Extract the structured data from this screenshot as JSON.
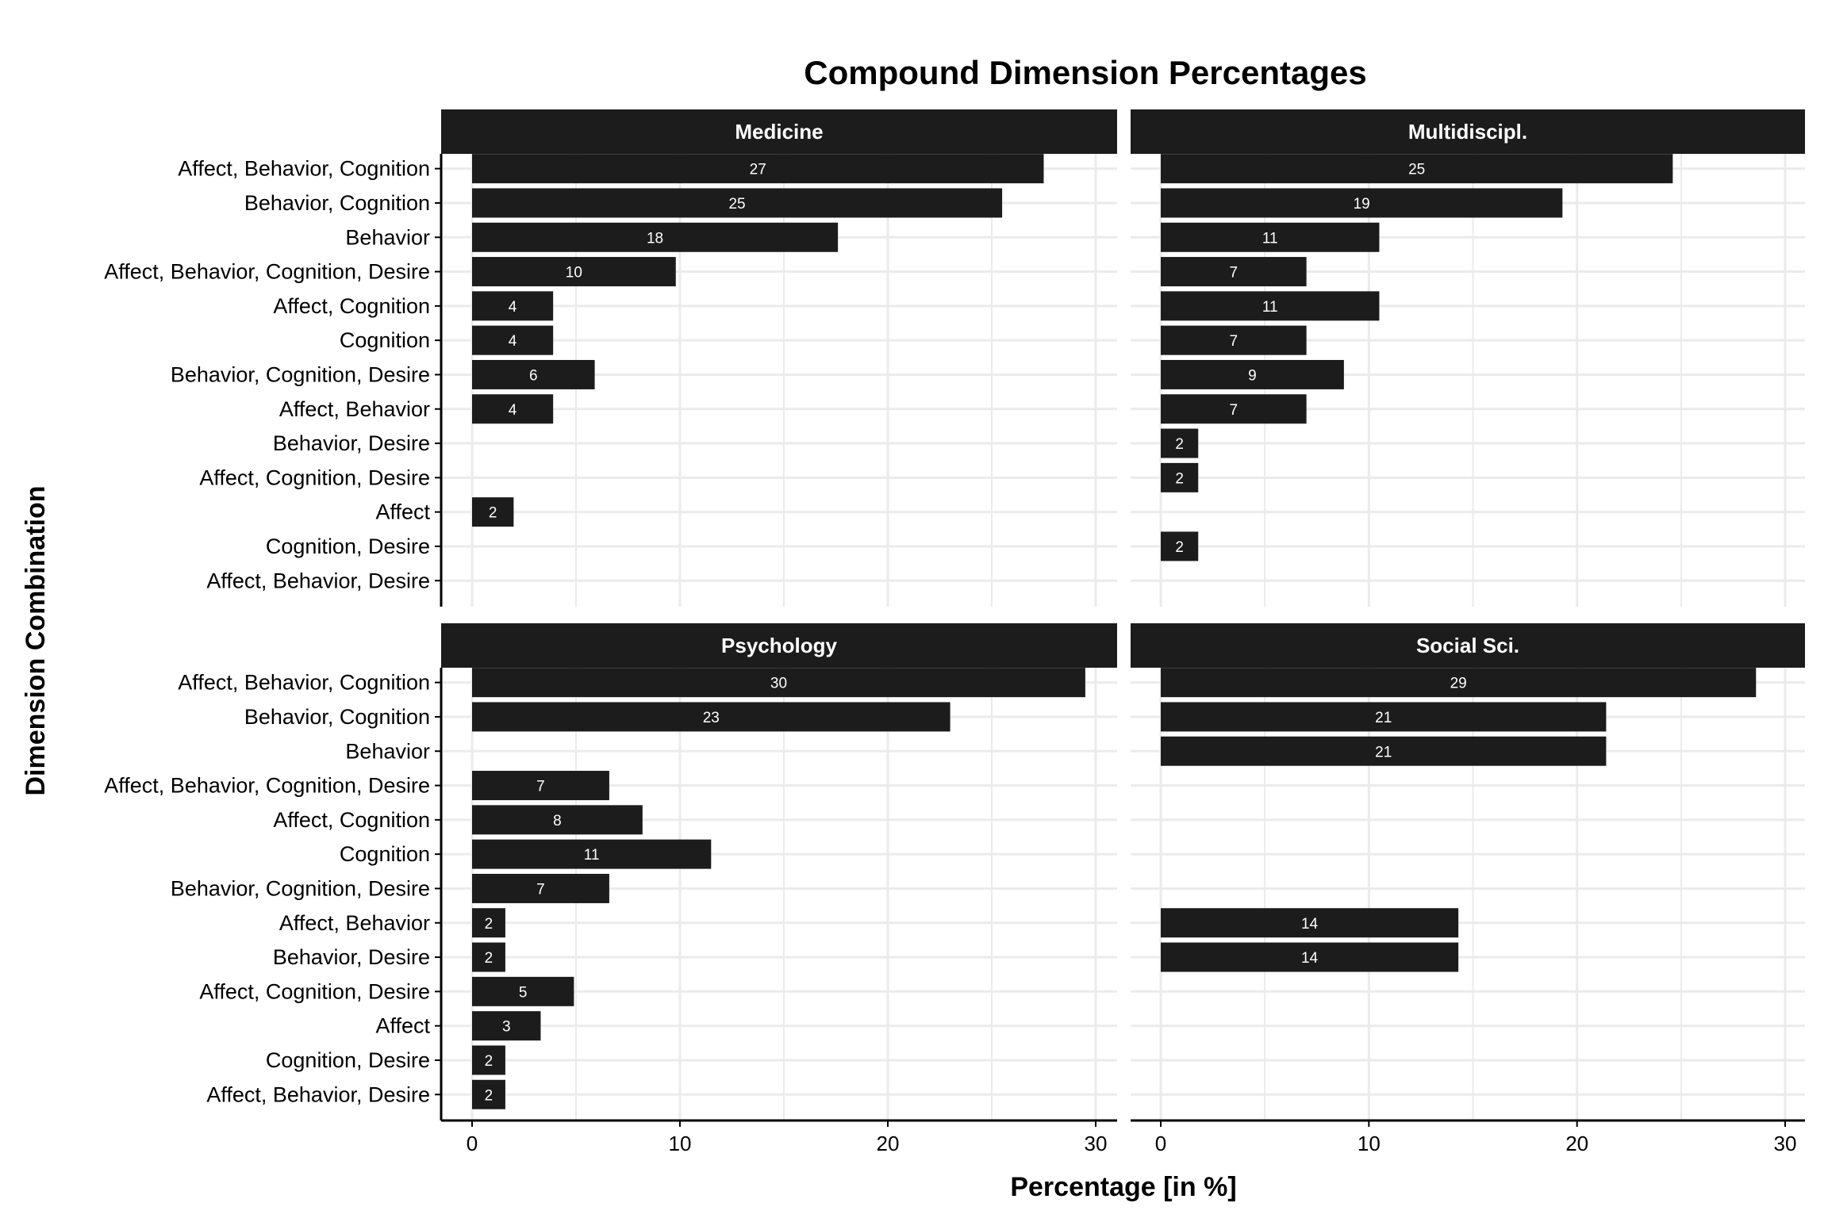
{
  "chart_data": {
    "type": "bar",
    "orientation": "horizontal",
    "title": "Compound Dimension Percentages",
    "xlabel": "Percentage [in %]",
    "ylabel": "Dimension Combination",
    "xlim": [
      0,
      30
    ],
    "x_ticks": [
      "0",
      "10",
      "20",
      "30"
    ],
    "grid": true,
    "categories": [
      "Affect, Behavior, Cognition",
      "Behavior, Cognition",
      "Behavior",
      "Affect, Behavior, Cognition, Desire",
      "Affect, Cognition",
      "Cognition",
      "Behavior, Cognition, Desire",
      "Affect, Behavior",
      "Behavior, Desire",
      "Affect, Cognition, Desire",
      "Affect",
      "Cognition, Desire",
      "Affect, Behavior, Desire"
    ],
    "panels": [
      {
        "name": "Medicine",
        "values": [
          27.5,
          25.5,
          17.6,
          9.8,
          3.9,
          3.9,
          5.9,
          3.9,
          null,
          null,
          2.0,
          null,
          null
        ],
        "labels": [
          "27",
          "25",
          "18",
          "10",
          "4",
          "4",
          "6",
          "4",
          "",
          "",
          "2",
          "",
          ""
        ]
      },
      {
        "name": "Multidiscipl.",
        "values": [
          24.6,
          19.3,
          10.5,
          7.0,
          10.5,
          7.0,
          8.8,
          7.0,
          1.8,
          1.8,
          null,
          1.8,
          null
        ],
        "labels": [
          "25",
          "19",
          "11",
          "7",
          "11",
          "7",
          "9",
          "7",
          "2",
          "2",
          "",
          "2",
          ""
        ]
      },
      {
        "name": "Psychology",
        "values": [
          29.5,
          23.0,
          null,
          6.6,
          8.2,
          11.5,
          6.6,
          1.6,
          1.6,
          4.9,
          3.3,
          1.6,
          1.6
        ],
        "labels": [
          "30",
          "23",
          "",
          "7",
          "8",
          "11",
          "7",
          "2",
          "2",
          "5",
          "3",
          "2",
          "2"
        ]
      },
      {
        "name": "Social Sci.",
        "values": [
          28.6,
          21.4,
          21.4,
          null,
          null,
          null,
          null,
          14.3,
          14.3,
          null,
          null,
          null,
          null
        ],
        "labels": [
          "29",
          "21",
          "21",
          "",
          "",
          "",
          "",
          "14",
          "14",
          "",
          "",
          "",
          ""
        ]
      }
    ],
    "colors": {
      "bar": "#1c1c1c",
      "strip": "#1c1c1c",
      "grid": "#ebebeb",
      "axis": "#000000"
    }
  }
}
